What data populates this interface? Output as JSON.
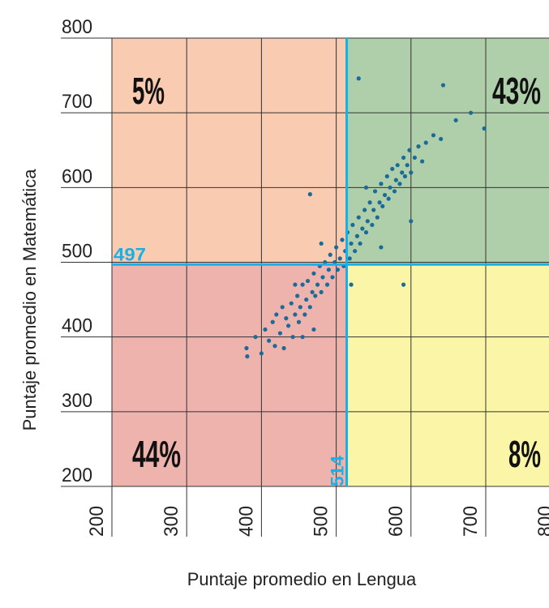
{
  "chart_data": {
    "type": "scatter",
    "xlabel": "Puntaje promedio en Lengua",
    "ylabel": "Puntaje promedio en Matemática",
    "xlim": [
      200,
      800
    ],
    "ylim": [
      200,
      800
    ],
    "xticks": [
      200,
      300,
      400,
      500,
      600,
      700,
      800
    ],
    "yticks": [
      200,
      300,
      400,
      500,
      600,
      700,
      800
    ],
    "grid": true,
    "color": "#1a6b9a",
    "line_color": "#19b0e6",
    "quadrant_x": 514,
    "quadrant_y": 497,
    "quadrant_colors": [
      "#f9cbb0",
      "#afcfaa",
      "#eeb3ad",
      "#fbf5a8"
    ],
    "quadrant_values": [
      5,
      43,
      44,
      8
    ],
    "quadrant_value_labels": [
      "5%",
      "43%",
      "44%",
      "8%"
    ],
    "x": [
      380,
      392,
      400,
      405,
      410,
      415,
      418,
      420,
      425,
      428,
      430,
      433,
      436,
      440,
      442,
      445,
      448,
      450,
      452,
      455,
      458,
      460,
      462,
      465,
      468,
      470,
      472,
      475,
      478,
      480,
      482,
      485,
      488,
      490,
      492,
      495,
      498,
      500,
      502,
      505,
      508,
      510,
      512,
      515,
      518,
      520,
      522,
      525,
      528,
      530,
      532,
      535,
      538,
      540,
      542,
      545,
      548,
      550,
      552,
      555,
      558,
      560,
      562,
      565,
      568,
      570,
      572,
      575,
      578,
      580,
      582,
      585,
      588,
      590,
      592,
      595,
      598,
      600,
      605,
      610,
      615,
      620,
      630,
      640,
      660,
      680,
      698,
      530,
      643,
      465,
      381,
      480,
      560,
      600,
      455,
      590,
      470,
      520,
      540,
      445
    ],
    "y": [
      385,
      400,
      378,
      410,
      395,
      420,
      388,
      430,
      405,
      440,
      385,
      425,
      415,
      445,
      400,
      430,
      455,
      420,
      440,
      470,
      430,
      450,
      475,
      440,
      460,
      485,
      455,
      470,
      495,
      460,
      480,
      500,
      470,
      490,
      510,
      480,
      500,
      520,
      490,
      505,
      530,
      495,
      515,
      540,
      505,
      525,
      550,
      515,
      535,
      560,
      525,
      545,
      570,
      540,
      555,
      580,
      550,
      570,
      595,
      560,
      580,
      605,
      575,
      590,
      615,
      585,
      600,
      625,
      595,
      610,
      630,
      605,
      620,
      640,
      615,
      630,
      650,
      620,
      640,
      655,
      635,
      660,
      670,
      665,
      690,
      700,
      679,
      746,
      737,
      591,
      374,
      525,
      520,
      555,
      400,
      470,
      410,
      470,
      600,
      470
    ]
  }
}
